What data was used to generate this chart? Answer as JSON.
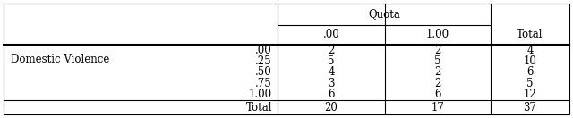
{
  "col_header_top": "Quota",
  "col_header_sub": [
    ".00",
    "1.00",
    "Total"
  ],
  "row_header_main": "Domestic Violence",
  "row_header_sub": [
    ".00",
    ".25",
    ".50",
    ".75",
    "1.00"
  ],
  "row_footer": "Total",
  "data_col0": [
    2,
    5,
    4,
    3,
    6
  ],
  "data_col1": [
    2,
    5,
    2,
    2,
    6
  ],
  "data_col2": [
    4,
    10,
    6,
    5,
    12
  ],
  "total_row": [
    20,
    17,
    37
  ],
  "bg_color": "#ffffff",
  "line_color": "#000000",
  "text_color": "#000000",
  "font_size": 8.5,
  "fig_width": 6.4,
  "fig_height": 1.32
}
